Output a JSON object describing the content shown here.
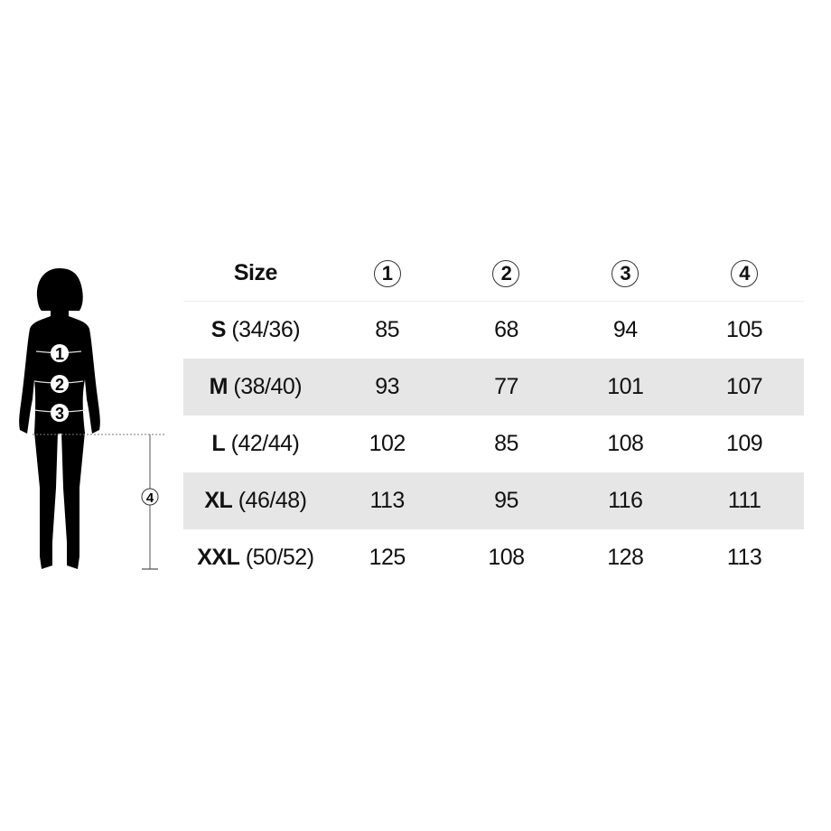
{
  "header": {
    "size_label": "Size",
    "columns": [
      "1",
      "2",
      "3",
      "4"
    ]
  },
  "figure": {
    "markers": [
      "1",
      "2",
      "3"
    ],
    "length_marker": "4"
  },
  "rows": [
    {
      "size": "S",
      "eu": "(34/36)",
      "values": [
        "85",
        "68",
        "94",
        "105"
      ]
    },
    {
      "size": "M",
      "eu": "(38/40)",
      "values": [
        "93",
        "77",
        "101",
        "107"
      ]
    },
    {
      "size": "L",
      "eu": "(42/44)",
      "values": [
        "102",
        "85",
        "108",
        "109"
      ]
    },
    {
      "size": "XL",
      "eu": "(46/48)",
      "values": [
        "113",
        "95",
        "116",
        "111"
      ]
    },
    {
      "size": "XXL",
      "eu": "(50/52)",
      "values": [
        "125",
        "108",
        "128",
        "113"
      ]
    }
  ],
  "colors": {
    "shade": "#e6e6e6",
    "silhouette": "#000000"
  }
}
